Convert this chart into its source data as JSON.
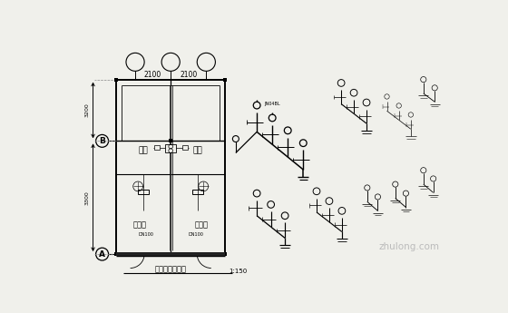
{
  "bg_color": "#f0f0eb",
  "title": "厉房卫生间详图",
  "scale": "1:150",
  "dim1": "2100",
  "dim2": "2100",
  "label_A": "A",
  "label_B": "B",
  "dim_3200": "3200",
  "dim_3300": "3300",
  "label_kitchen": "厉房",
  "label_bathroom": "卫生间",
  "watermark": "zhulong.com",
  "col": "black",
  "col_mid": "#444444",
  "col_light": "#888888"
}
